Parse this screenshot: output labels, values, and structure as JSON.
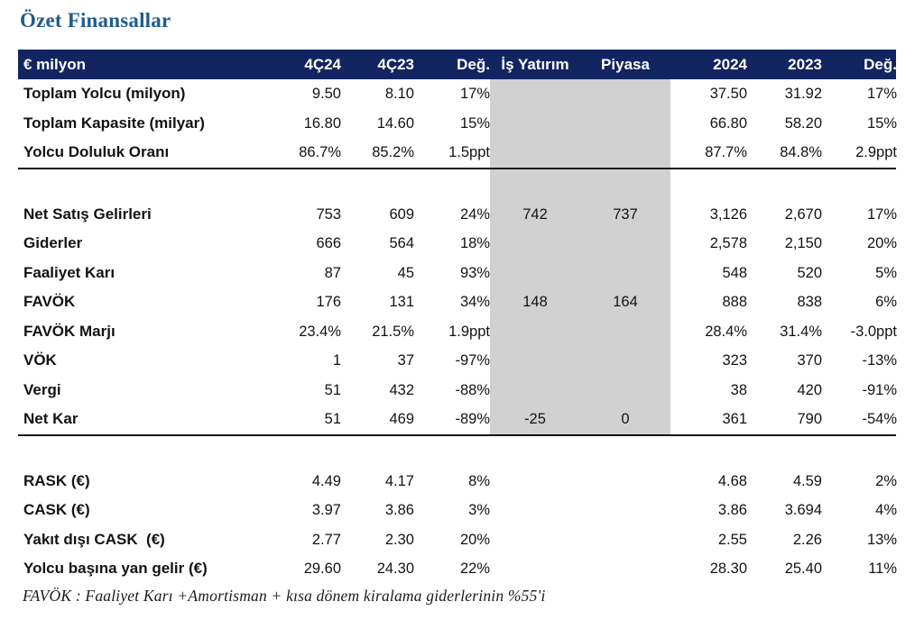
{
  "title": "Özet Finansallar",
  "footnote": "FAVÖK :  Faaliyet Karı +Amortisman + kısa dönem kiralama giderlerinin %55'i",
  "colors": {
    "header_bg": "#132560",
    "highlight_band": "#d1d1d1",
    "title_blue": "#1f5c8c",
    "divider": "#14141f"
  },
  "table": {
    "headers": [
      "€ milyon",
      "4Ç24",
      "4Ç23",
      "Değ.",
      "İş Yatırım",
      "Piyasa",
      "2024",
      "2023",
      "Değ."
    ],
    "sections": [
      {
        "name": "traffic",
        "shaded_mid": true,
        "divider_after": true,
        "rows": [
          {
            "label": "Toplam Yolcu (milyon)",
            "values": [
              "9.50",
              "8.10",
              "17%",
              "",
              "",
              "37.50",
              "31.92",
              "17%"
            ]
          },
          {
            "label": "Toplam Kapasite (milyar)",
            "values": [
              "16.80",
              "14.60",
              "15%",
              "",
              "",
              "66.80",
              "58.20",
              "15%"
            ]
          },
          {
            "label": "Yolcu Doluluk Oranı",
            "values": [
              "86.7%",
              "85.2%",
              "1.5ppt",
              "",
              "",
              "87.7%",
              "84.8%",
              "2.9ppt"
            ]
          }
        ]
      },
      {
        "name": "spacer-1",
        "spacer": true,
        "shaded_mid": true,
        "rows": []
      },
      {
        "name": "income-statement",
        "shaded_mid": true,
        "divider_after": true,
        "rows": [
          {
            "label": "Net Satış Gelirleri",
            "values": [
              "753",
              "609",
              "24%",
              "742",
              "737",
              "3,126",
              "2,670",
              "17%"
            ]
          },
          {
            "label": "Giderler",
            "values": [
              "666",
              "564",
              "18%",
              "",
              "",
              "2,578",
              "2,150",
              "20%"
            ]
          },
          {
            "label": "Faaliyet Karı",
            "values": [
              "87",
              "45",
              "93%",
              "",
              "",
              "548",
              "520",
              "5%"
            ]
          },
          {
            "label": "FAVÖK",
            "values": [
              "176",
              "131",
              "34%",
              "148",
              "164",
              "888",
              "838",
              "6%"
            ]
          },
          {
            "label": "FAVÖK Marjı",
            "values": [
              "23.4%",
              "21.5%",
              "1.9ppt",
              "",
              "",
              "28.4%",
              "31.4%",
              "-3.0ppt"
            ]
          },
          {
            "label": "VÖK",
            "values": [
              "1",
              "37",
              "-97%",
              "",
              "",
              "323",
              "370",
              "-13%"
            ]
          },
          {
            "label": "Vergi",
            "values": [
              "51",
              "432",
              "-88%",
              "",
              "",
              "38",
              "420",
              "-91%"
            ]
          },
          {
            "label": "Net Kar",
            "values": [
              "51",
              "469",
              "-89%",
              "-25",
              "0",
              "361",
              "790",
              "-54%"
            ]
          }
        ]
      },
      {
        "name": "spacer-2",
        "spacer": true,
        "shaded_mid": false,
        "rows": []
      },
      {
        "name": "unit-metrics",
        "shaded_mid": false,
        "divider_after": false,
        "rows": [
          {
            "label": "RASK (€)",
            "values": [
              "4.49",
              "4.17",
              "8%",
              "",
              "",
              "4.68",
              "4.59",
              "2%"
            ]
          },
          {
            "label": "CASK (€)",
            "values": [
              "3.97",
              "3.86",
              "3%",
              "",
              "",
              "3.86",
              "3.694",
              "4%"
            ]
          },
          {
            "label": "Yakıt dışı CASK  (€)",
            "values": [
              "2.77",
              "2.30",
              "20%",
              "",
              "",
              "2.55",
              "2.26",
              "13%"
            ]
          },
          {
            "label": "Yolcu başına yan gelir (€)",
            "values": [
              "29.60",
              "24.30",
              "22%",
              "",
              "",
              "28.30",
              "25.40",
              "11%"
            ]
          }
        ]
      }
    ]
  }
}
